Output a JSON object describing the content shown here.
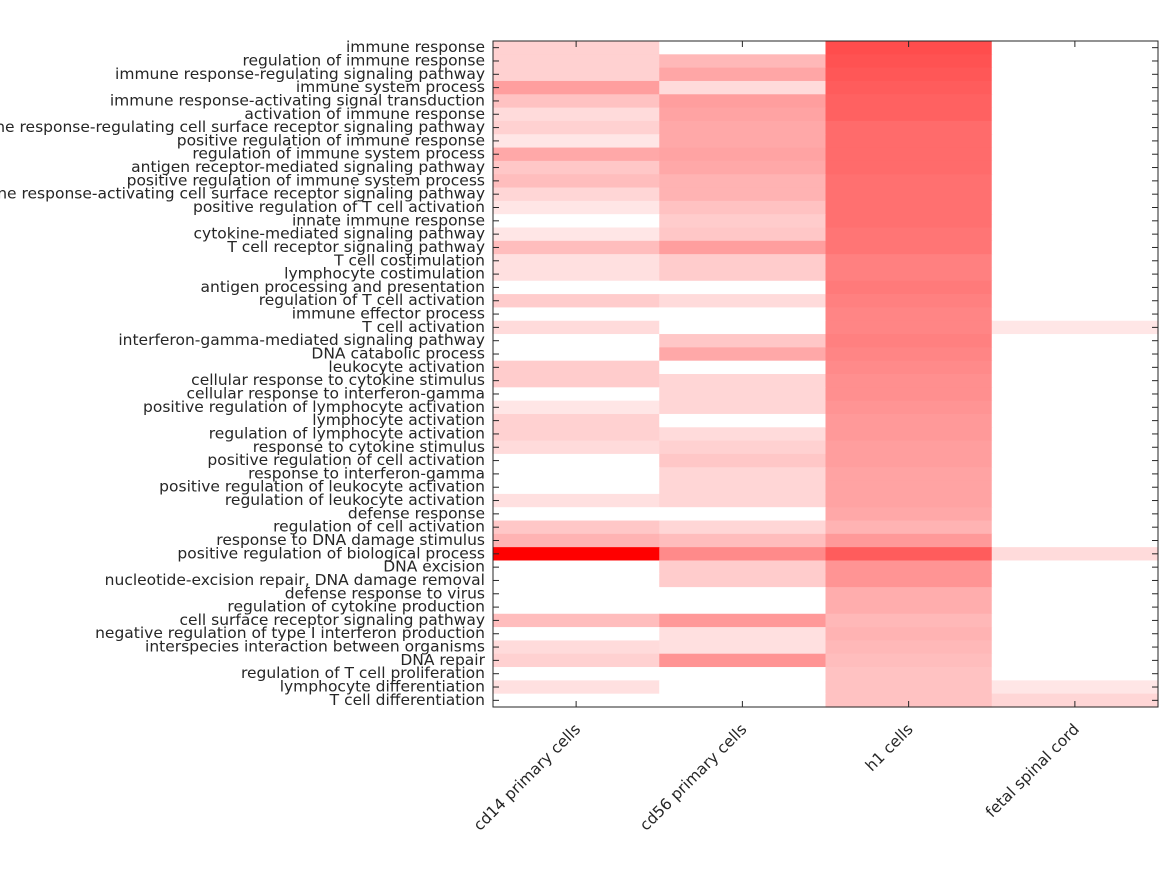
{
  "chart_data": {
    "type": "heatmap",
    "title": "",
    "xlabel": "",
    "ylabel": "",
    "columns": [
      "cd14 primary cells",
      "cd56 primary cells",
      "h1 cells",
      "fetal spinal cord"
    ],
    "rows": [
      "immune response",
      "regulation of immune response",
      "immune response-regulating signaling pathway",
      "immune system process",
      "immune response-activating signal transduction",
      "activation of immune response",
      "immune response-regulating cell surface receptor signaling pathway",
      "positive regulation of immune response",
      "regulation of immune system process",
      "antigen receptor-mediated signaling pathway",
      "positive regulation of immune system process",
      "immune response-activating cell surface receptor signaling pathway",
      "positive regulation of T cell activation",
      "innate immune response",
      "cytokine-mediated signaling pathway",
      "T cell receptor signaling pathway",
      "T cell costimulation",
      "lymphocyte costimulation",
      "antigen processing and presentation",
      "regulation of T cell activation",
      "immune effector process",
      "T cell activation",
      "interferon-gamma-mediated signaling pathway",
      "DNA catabolic process",
      "leukocyte activation",
      "cellular response to cytokine stimulus",
      "cellular response to interferon-gamma",
      "positive regulation of lymphocyte activation",
      "lymphocyte activation",
      "regulation of lymphocyte activation",
      "response to cytokine stimulus",
      "positive regulation of cell activation",
      "response to interferon-gamma",
      "positive regulation of leukocyte activation",
      "regulation of leukocyte activation",
      "defense response",
      "regulation of cell activation",
      "response to DNA damage stimulus",
      "positive regulation of biological process",
      "DNA excision",
      "nucleotide-excision repair, DNA damage removal",
      "defense response to virus",
      "regulation of cytokine production",
      "cell surface receptor signaling pathway",
      "negative regulation of type I interferon production",
      "interspecies interaction between organisms",
      "DNA repair",
      "regulation of T cell proliferation",
      "lymphocyte differentiation",
      "T cell differentiation"
    ],
    "values": [
      [
        0.18,
        0.0,
        0.7,
        0.0
      ],
      [
        0.18,
        0.28,
        0.68,
        0.0
      ],
      [
        0.18,
        0.35,
        0.66,
        0.0
      ],
      [
        0.38,
        0.14,
        0.64,
        0.0
      ],
      [
        0.24,
        0.38,
        0.62,
        0.0
      ],
      [
        0.14,
        0.36,
        0.62,
        0.0
      ],
      [
        0.18,
        0.34,
        0.58,
        0.0
      ],
      [
        0.1,
        0.34,
        0.58,
        0.0
      ],
      [
        0.34,
        0.36,
        0.58,
        0.0
      ],
      [
        0.22,
        0.34,
        0.58,
        0.0
      ],
      [
        0.26,
        0.3,
        0.56,
        0.0
      ],
      [
        0.16,
        0.3,
        0.56,
        0.0
      ],
      [
        0.1,
        0.24,
        0.56,
        0.0
      ],
      [
        0.0,
        0.2,
        0.56,
        0.0
      ],
      [
        0.1,
        0.22,
        0.54,
        0.0
      ],
      [
        0.26,
        0.38,
        0.54,
        0.0
      ],
      [
        0.12,
        0.2,
        0.5,
        0.0
      ],
      [
        0.12,
        0.2,
        0.5,
        0.0
      ],
      [
        0.0,
        0.0,
        0.52,
        0.0
      ],
      [
        0.2,
        0.14,
        0.5,
        0.0
      ],
      [
        0.0,
        0.0,
        0.48,
        0.0
      ],
      [
        0.14,
        0.0,
        0.48,
        0.1
      ],
      [
        0.0,
        0.22,
        0.5,
        0.0
      ],
      [
        0.0,
        0.34,
        0.48,
        0.0
      ],
      [
        0.2,
        0.0,
        0.46,
        0.0
      ],
      [
        0.2,
        0.16,
        0.44,
        0.0
      ],
      [
        0.0,
        0.16,
        0.44,
        0.0
      ],
      [
        0.1,
        0.16,
        0.42,
        0.0
      ],
      [
        0.18,
        0.0,
        0.4,
        0.0
      ],
      [
        0.18,
        0.14,
        0.4,
        0.0
      ],
      [
        0.14,
        0.18,
        0.38,
        0.0
      ],
      [
        0.0,
        0.22,
        0.38,
        0.0
      ],
      [
        0.0,
        0.16,
        0.36,
        0.0
      ],
      [
        0.0,
        0.16,
        0.36,
        0.0
      ],
      [
        0.12,
        0.16,
        0.36,
        0.0
      ],
      [
        0.0,
        0.0,
        0.34,
        0.0
      ],
      [
        0.22,
        0.16,
        0.3,
        0.0
      ],
      [
        0.3,
        0.26,
        0.4,
        0.0
      ],
      [
        1.0,
        0.46,
        0.64,
        0.14
      ],
      [
        0.0,
        0.2,
        0.42,
        0.0
      ],
      [
        0.0,
        0.2,
        0.42,
        0.0
      ],
      [
        0.0,
        0.0,
        0.32,
        0.0
      ],
      [
        0.0,
        0.0,
        0.32,
        0.0
      ],
      [
        0.26,
        0.4,
        0.28,
        0.0
      ],
      [
        0.0,
        0.12,
        0.3,
        0.0
      ],
      [
        0.14,
        0.12,
        0.28,
        0.0
      ],
      [
        0.18,
        0.42,
        0.26,
        0.0
      ],
      [
        0.0,
        0.0,
        0.24,
        0.0
      ],
      [
        0.12,
        0.0,
        0.24,
        0.1
      ],
      [
        0.0,
        0.0,
        0.24,
        0.16
      ]
    ],
    "colormap": {
      "low": "#ffffff",
      "high": "#ff0000"
    },
    "grid": false,
    "legend": "none"
  }
}
